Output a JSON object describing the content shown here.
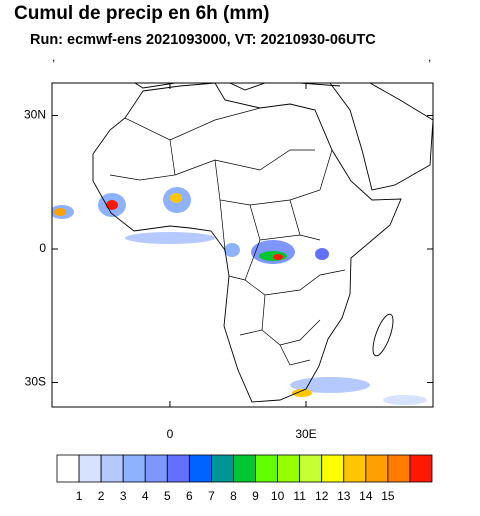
{
  "title": "Cumul de precip en 6h (mm)",
  "subtitle": "Run: ecmwf-ens 2021093000,  VT: 20210930-06UTC",
  "left_string": ",",
  "right_string": ",",
  "map": {
    "xlim": [
      -26,
      58
    ],
    "ylim": [
      -35.5,
      37.3
    ],
    "lat_ticks": [
      {
        "value": 30,
        "label": "30N"
      },
      0,
      {
        "value": -30,
        "label": "30S"
      }
    ],
    "lon_ticks": [
      0,
      {
        "value": 30,
        "label": "30E"
      }
    ]
  },
  "colorbar": {
    "levels": [
      1,
      2,
      3,
      4,
      5,
      6,
      7,
      8,
      9,
      10,
      11,
      12,
      13,
      14,
      15
    ],
    "colors": [
      "#ffffff",
      "#d6e2ff",
      "#b5c9ff",
      "#8eb2ff",
      "#7f96ff",
      "#6370ff",
      "#0063ff",
      "#009696",
      "#00c633",
      "#63ff00",
      "#96ff00",
      "#c6ff33",
      "#ffff00",
      "#ffc600",
      "#ffa000",
      "#ff7c00",
      "#ff1900"
    ]
  }
}
